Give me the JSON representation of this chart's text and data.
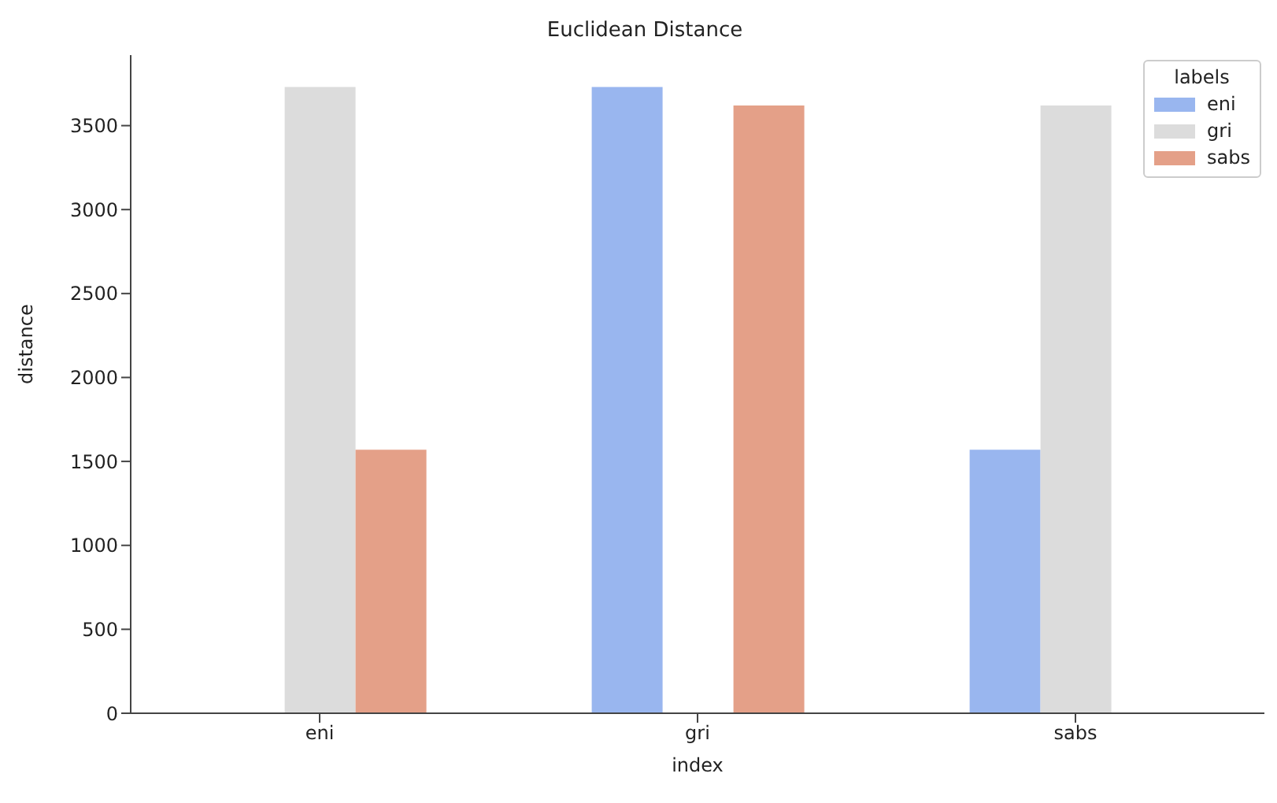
{
  "chart_data": {
    "type": "bar",
    "title": "Euclidean Distance",
    "xlabel": "index",
    "ylabel": "distance",
    "legend_title": "labels",
    "categories": [
      "eni",
      "gri",
      "sabs"
    ],
    "series": [
      {
        "name": "eni",
        "color": "#99b6ef",
        "values": [
          null,
          3730,
          1570
        ]
      },
      {
        "name": "gri",
        "color": "#dcdcdc",
        "values": [
          3730,
          null,
          3620
        ]
      },
      {
        "name": "sabs",
        "color": "#e4a088",
        "values": [
          1570,
          3620,
          null
        ]
      }
    ],
    "ylim": [
      0,
      3920
    ],
    "yticks": [
      0,
      500,
      1000,
      1500,
      2000,
      2500,
      3000,
      3500
    ],
    "grid": false,
    "legend": "top right"
  }
}
